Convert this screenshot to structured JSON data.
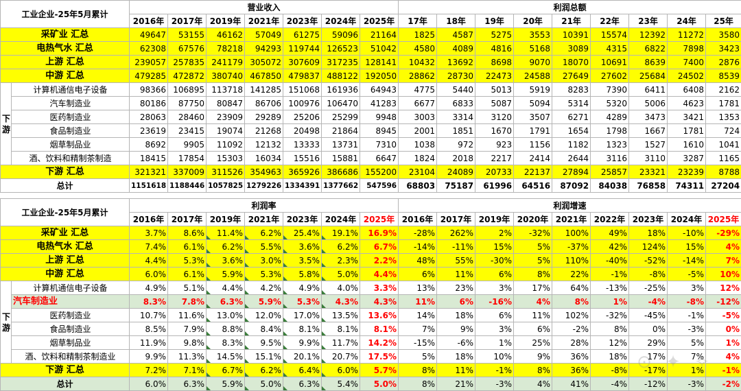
{
  "table1": {
    "title": "工业企业-25年5月累计",
    "group_revenue": "营业收入",
    "group_profit": "利润总额",
    "revenue_years": [
      "2016年",
      "2017年",
      "2019年",
      "2021年",
      "2023年",
      "2024年",
      "2025年"
    ],
    "profit_years": [
      "17年",
      "18年",
      "19年",
      "20年",
      "21年",
      "22年",
      "23年",
      "24年",
      "25年"
    ],
    "side_label": "下游",
    "rows": [
      {
        "label": "采矿业 汇总",
        "style": "yellow",
        "cells": [
          "49647",
          "53155",
          "46162",
          "57049",
          "61275",
          "59096",
          "21164",
          "1825",
          "4587",
          "5275",
          "3553",
          "10391",
          "15574",
          "12392",
          "11272",
          "3580"
        ]
      },
      {
        "label": "电热气水 汇总",
        "style": "yellow",
        "cells": [
          "62308",
          "67576",
          "78218",
          "94293",
          "119744",
          "126523",
          "51042",
          "4580",
          "4089",
          "4816",
          "5168",
          "3089",
          "4315",
          "6822",
          "7898",
          "3423"
        ]
      },
      {
        "label": "上游 汇总",
        "style": "yellow",
        "cells": [
          "239057",
          "257835",
          "241179",
          "305072",
          "307609",
          "317235",
          "128141",
          "10432",
          "13692",
          "8698",
          "9070",
          "18070",
          "10691",
          "8639",
          "7400",
          "2876"
        ]
      },
      {
        "label": "中游 汇总",
        "style": "yellow",
        "cells": [
          "479285",
          "472872",
          "380740",
          "467850",
          "479837",
          "488122",
          "192050",
          "28862",
          "28730",
          "22473",
          "24588",
          "27649",
          "27602",
          "25684",
          "24502",
          "8539"
        ]
      },
      {
        "label": "计算机通信电子设备",
        "style": "white",
        "cells": [
          "98366",
          "106895",
          "113718",
          "141285",
          "151068",
          "161936",
          "64943",
          "4775",
          "5440",
          "5013",
          "5919",
          "8283",
          "7390",
          "6411",
          "6408",
          "2162"
        ]
      },
      {
        "label": "汽车制造业",
        "style": "white",
        "cells": [
          "80186",
          "87750",
          "80847",
          "86706",
          "100976",
          "106470",
          "41283",
          "6677",
          "6833",
          "5087",
          "5094",
          "5314",
          "5320",
          "5006",
          "4623",
          "1781"
        ]
      },
      {
        "label": "医药制造业",
        "style": "white",
        "cells": [
          "28063",
          "28460",
          "23909",
          "29289",
          "25206",
          "25299",
          "9948",
          "3003",
          "3314",
          "3120",
          "3507",
          "6271",
          "4289",
          "3473",
          "3421",
          "1353"
        ]
      },
      {
        "label": "食品制造业",
        "style": "white",
        "cells": [
          "23619",
          "23415",
          "19074",
          "21268",
          "20498",
          "21864",
          "8945",
          "2001",
          "1851",
          "1670",
          "1791",
          "1654",
          "1798",
          "1667",
          "1781",
          "724"
        ]
      },
      {
        "label": "烟草制品业",
        "style": "white",
        "cells": [
          "8692",
          "9905",
          "11092",
          "12132",
          "13333",
          "13731",
          "7310",
          "1038",
          "972",
          "923",
          "1156",
          "1182",
          "1323",
          "1527",
          "1610",
          "1041"
        ]
      },
      {
        "label": "酒、饮料和精制茶制造",
        "style": "white",
        "cells": [
          "18415",
          "17854",
          "15303",
          "16034",
          "15516",
          "15881",
          "6647",
          "1824",
          "2018",
          "2217",
          "2414",
          "2644",
          "3116",
          "3110",
          "3287",
          "1165"
        ]
      },
      {
        "label": "下游 汇总",
        "style": "yellow",
        "cells": [
          "321321",
          "337009",
          "311526",
          "354963",
          "365926",
          "386686",
          "155200",
          "23104",
          "24089",
          "20733",
          "22137",
          "27894",
          "25857",
          "23321",
          "23239",
          "8788"
        ]
      },
      {
        "label": "总计",
        "style": "total",
        "cells": [
          "1151618",
          "1188446",
          "1057825",
          "1279226",
          "1334391",
          "1377662",
          "547596",
          "68803",
          "75187",
          "61996",
          "64516",
          "87092",
          "84038",
          "76858",
          "74311",
          "27204"
        ]
      }
    ]
  },
  "table2": {
    "title": "工业企业-25年5月累计",
    "group_margin": "利润率",
    "group_growth": "利润增速",
    "margin_years": [
      "2016年",
      "2017年",
      "2019年",
      "2021年",
      "2023年",
      "2024年",
      "2025年"
    ],
    "growth_years": [
      "2016年",
      "2017年",
      "2019年",
      "2020年",
      "2021年",
      "2022年",
      "2023年",
      "2024年",
      "2025年"
    ],
    "side_label": "下游",
    "rows": [
      {
        "label": "采矿业 汇总",
        "style": "yellow",
        "cells": [
          "3.7%",
          "8.6%",
          "11.4%",
          "6.2%",
          "25.4%",
          "19.1%",
          "16.9%",
          "-28%",
          "262%",
          "2%",
          "-32%",
          "100%",
          "49%",
          "18%",
          "-10%",
          "-29%"
        ]
      },
      {
        "label": "电热气水 汇总",
        "style": "yellow",
        "cells": [
          "7.4%",
          "6.1%",
          "6.2%",
          "5.5%",
          "3.6%",
          "6.2%",
          "6.7%",
          "-14%",
          "-11%",
          "15%",
          "5%",
          "-37%",
          "42%",
          "124%",
          "15%",
          "4%"
        ]
      },
      {
        "label": "上游 汇总",
        "style": "yellow",
        "cells": [
          "4.4%",
          "5.3%",
          "3.6%",
          "3.0%",
          "3.5%",
          "2.3%",
          "2.2%",
          "48%",
          "55%",
          "-30%",
          "5%",
          "110%",
          "-40%",
          "-52%",
          "-14%",
          "7%"
        ]
      },
      {
        "label": "中游 汇总",
        "style": "yellow",
        "cells": [
          "6.0%",
          "6.1%",
          "5.9%",
          "5.3%",
          "5.8%",
          "5.0%",
          "4.4%",
          "6%",
          "11%",
          "6%",
          "8%",
          "22%",
          "-1%",
          "-8%",
          "-5%",
          "10%"
        ]
      },
      {
        "label": "计算机通信电子设备",
        "style": "white",
        "cells": [
          "4.9%",
          "5.1%",
          "4.4%",
          "4.2%",
          "4.9%",
          "4.0%",
          "3.3%",
          "13%",
          "23%",
          "3%",
          "17%",
          "64%",
          "-13%",
          "-25%",
          "3%",
          "12%"
        ]
      },
      {
        "label": "汽车制造业",
        "style": "green",
        "cells": [
          "8.3%",
          "7.8%",
          "6.3%",
          "5.9%",
          "5.3%",
          "4.3%",
          "4.3%",
          "11%",
          "6%",
          "-16%",
          "4%",
          "8%",
          "1%",
          "-4%",
          "-8%",
          "-12%"
        ]
      },
      {
        "label": "医药制造业",
        "style": "white",
        "cells": [
          "10.7%",
          "11.6%",
          "13.0%",
          "12.0%",
          "17.0%",
          "13.5%",
          "13.6%",
          "14%",
          "18%",
          "6%",
          "11%",
          "102%",
          "-32%",
          "-45%",
          "-1%",
          "-5%"
        ]
      },
      {
        "label": "食品制造业",
        "style": "white",
        "cells": [
          "8.5%",
          "7.9%",
          "8.8%",
          "8.4%",
          "8.1%",
          "8.1%",
          "8.1%",
          "7%",
          "9%",
          "3%",
          "6%",
          "-2%",
          "8%",
          "0%",
          "-3%",
          "0%"
        ]
      },
      {
        "label": "烟草制品业",
        "style": "white",
        "cells": [
          "11.9%",
          "9.8%",
          "8.3%",
          "9.5%",
          "9.9%",
          "11.7%",
          "14.2%",
          "-15%",
          "-6%",
          "1%",
          "25%",
          "28%",
          "12%",
          "29%",
          "5%",
          "1%"
        ]
      },
      {
        "label": "酒、饮料和精制茶制造业",
        "style": "white",
        "cells": [
          "9.9%",
          "11.3%",
          "14.5%",
          "15.1%",
          "20.1%",
          "20.7%",
          "17.5%",
          "5%",
          "18%",
          "10%",
          "9%",
          "36%",
          "18%",
          "17%",
          "7%",
          "4%"
        ]
      },
      {
        "label": "下游 汇总",
        "style": "yellow",
        "cells": [
          "7.2%",
          "7.1%",
          "6.7%",
          "6.2%",
          "6.4%",
          "6.0%",
          "5.7%",
          "8%",
          "11%",
          "-1%",
          "8%",
          "36%",
          "-8%",
          "-17%",
          "1%",
          "-1%"
        ]
      },
      {
        "label": "总计",
        "style": "total",
        "cells": [
          "6.0%",
          "6.3%",
          "5.9%",
          "5.0%",
          "6.3%",
          "5.4%",
          "5.0%",
          "8%",
          "21%",
          "-3%",
          "4%",
          "41%",
          "-4%",
          "-12%",
          "-3%",
          "-2%"
        ]
      }
    ]
  },
  "colors": {
    "highlight": "#ffff00",
    "accent_red": "#ff0000",
    "auto_row": "#d9ead3",
    "grid": "#b5b5b5"
  }
}
